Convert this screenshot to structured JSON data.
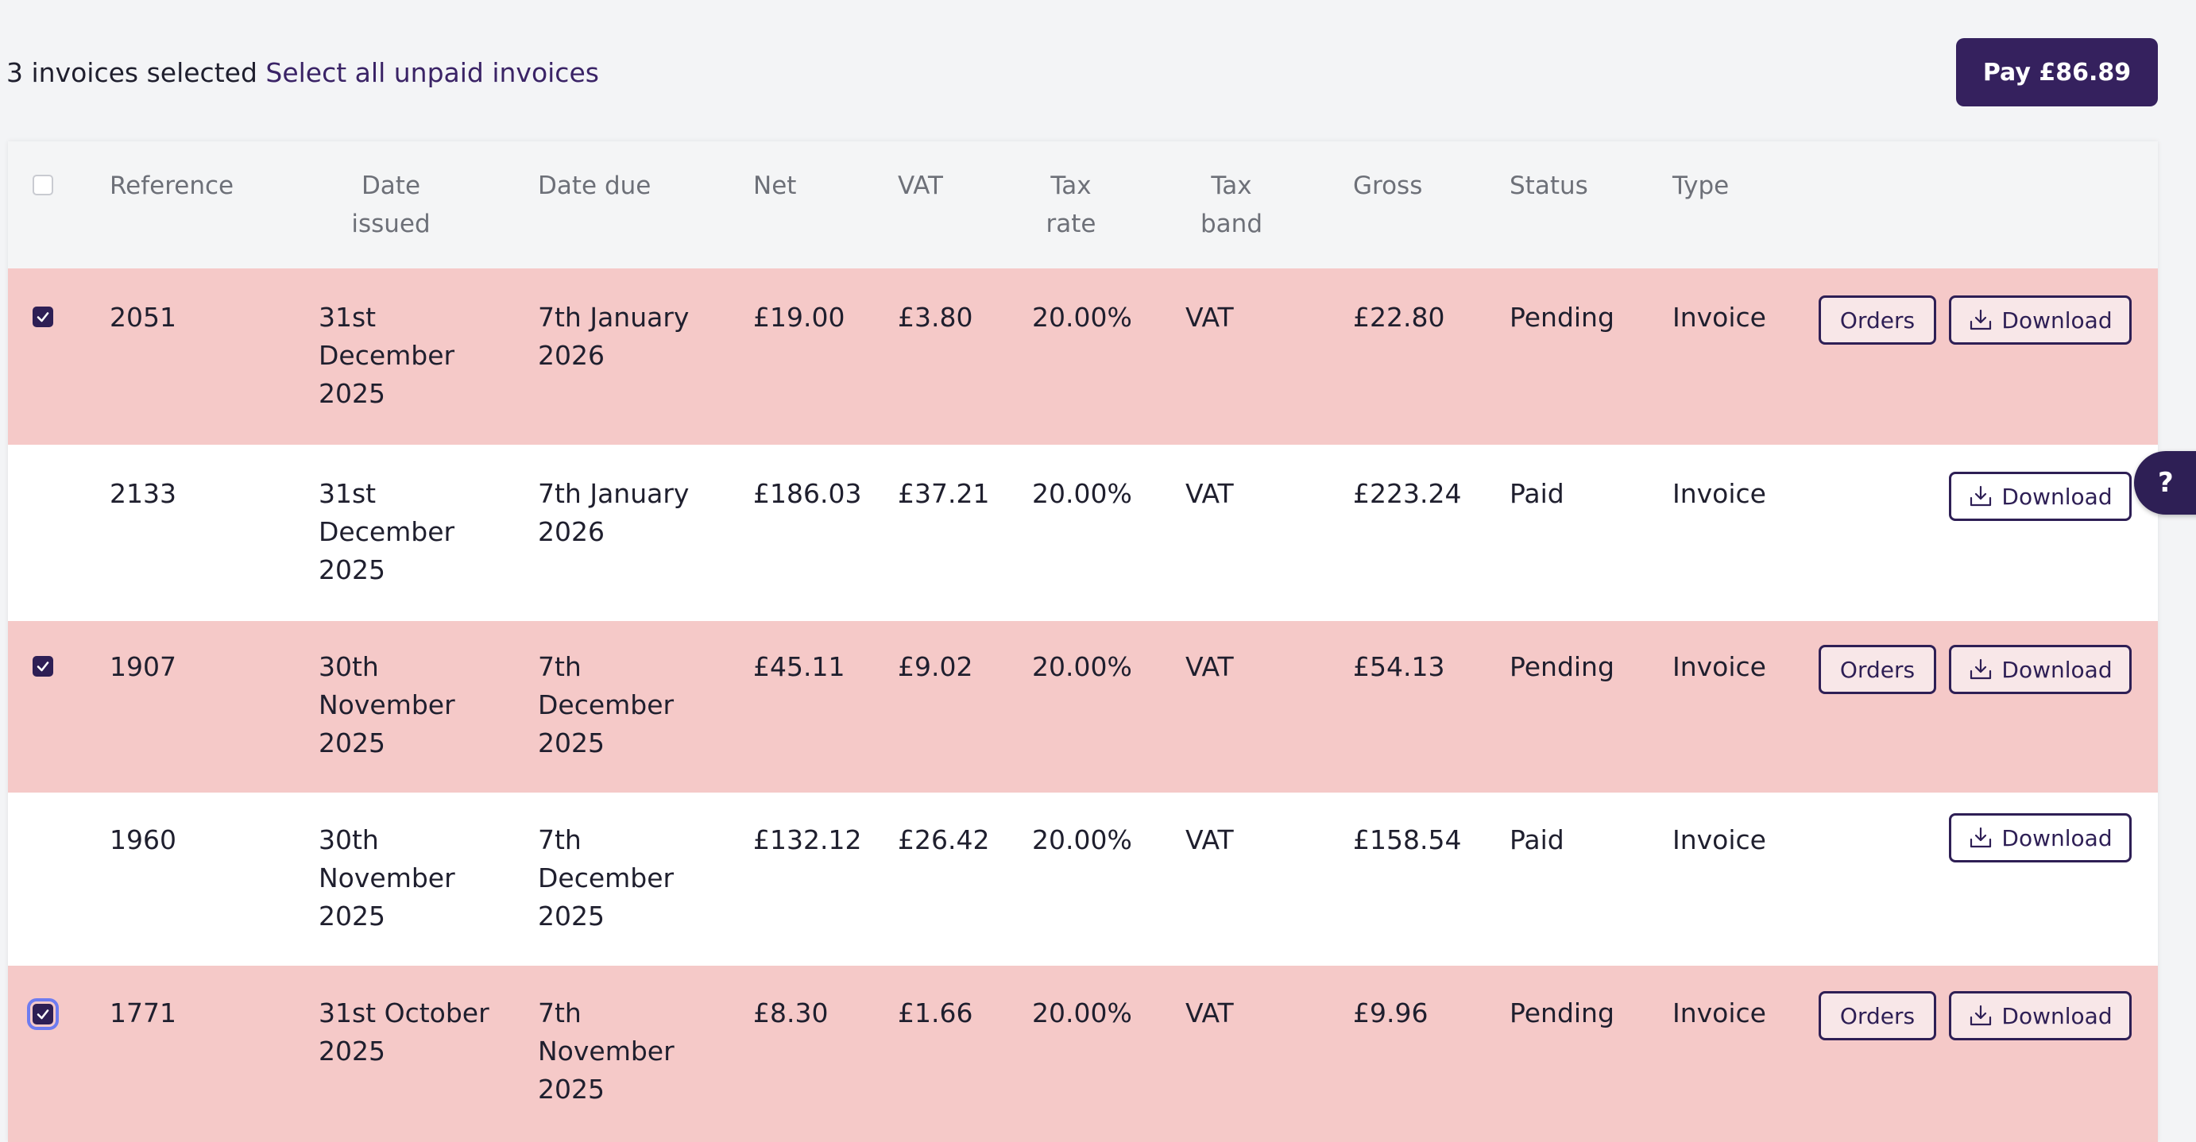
{
  "selection": {
    "count_text": "3 invoices selected",
    "select_all_link": "Select all unpaid invoices"
  },
  "pay_button": "Pay £86.89",
  "table": {
    "headers": {
      "reference": "Reference",
      "date_issued_1": "Date",
      "date_issued_2": "issued",
      "date_due": "Date due",
      "net": "Net",
      "vat": "VAT",
      "tax_rate_1": "Tax",
      "tax_rate_2": "rate",
      "tax_band_1": "Tax",
      "tax_band_2": "band",
      "gross": "Gross",
      "status": "Status",
      "type": "Type"
    },
    "rows": [
      {
        "checked": true,
        "reference": "2051",
        "date_issued": [
          "31st",
          "December",
          "2025"
        ],
        "date_due": [
          "7th January",
          "2026"
        ],
        "net": "£19.00",
        "vat": "£3.80",
        "tax_rate": "20.00%",
        "tax_band": "VAT",
        "gross": "£22.80",
        "status": "Pending",
        "type": "Invoice",
        "orders_label": "Orders",
        "download_label": "Download"
      },
      {
        "checked": false,
        "reference": "2133",
        "date_issued": [
          "31st",
          "December",
          "2025"
        ],
        "date_due": [
          "7th January",
          "2026"
        ],
        "net": "£186.03",
        "vat": "£37.21",
        "tax_rate": "20.00%",
        "tax_band": "VAT",
        "gross": "£223.24",
        "status": "Paid",
        "type": "Invoice",
        "download_label": "Download"
      },
      {
        "checked": true,
        "reference": "1907",
        "date_issued": [
          "30th",
          "November",
          "2025"
        ],
        "date_due": [
          "7th",
          "December",
          "2025"
        ],
        "net": "£45.11",
        "vat": "£9.02",
        "tax_rate": "20.00%",
        "tax_band": "VAT",
        "gross": "£54.13",
        "status": "Pending",
        "type": "Invoice",
        "orders_label": "Orders",
        "download_label": "Download"
      },
      {
        "checked": false,
        "reference": "1960",
        "date_issued": [
          "30th",
          "November",
          "2025"
        ],
        "date_due": [
          "7th",
          "December",
          "2025"
        ],
        "net": "£132.12",
        "vat": "£26.42",
        "tax_rate": "20.00%",
        "tax_band": "VAT",
        "gross": "£158.54",
        "status": "Paid",
        "type": "Invoice",
        "download_label": "Download"
      },
      {
        "checked": true,
        "reference": "1771",
        "date_issued": [
          "31st October",
          "2025"
        ],
        "date_due": [
          "7th",
          "November",
          "2025"
        ],
        "net": "£8.30",
        "vat": "£1.66",
        "tax_rate": "20.00%",
        "tax_band": "VAT",
        "gross": "£9.96",
        "status": "Pending",
        "type": "Invoice",
        "orders_label": "Orders",
        "download_label": "Download"
      }
    ]
  },
  "help_button": "?",
  "colors": {
    "primary": "#35215e",
    "pending_row": "#f5c9c8",
    "paid_row": "#ffffff",
    "page_bg": "#f3f4f6"
  }
}
